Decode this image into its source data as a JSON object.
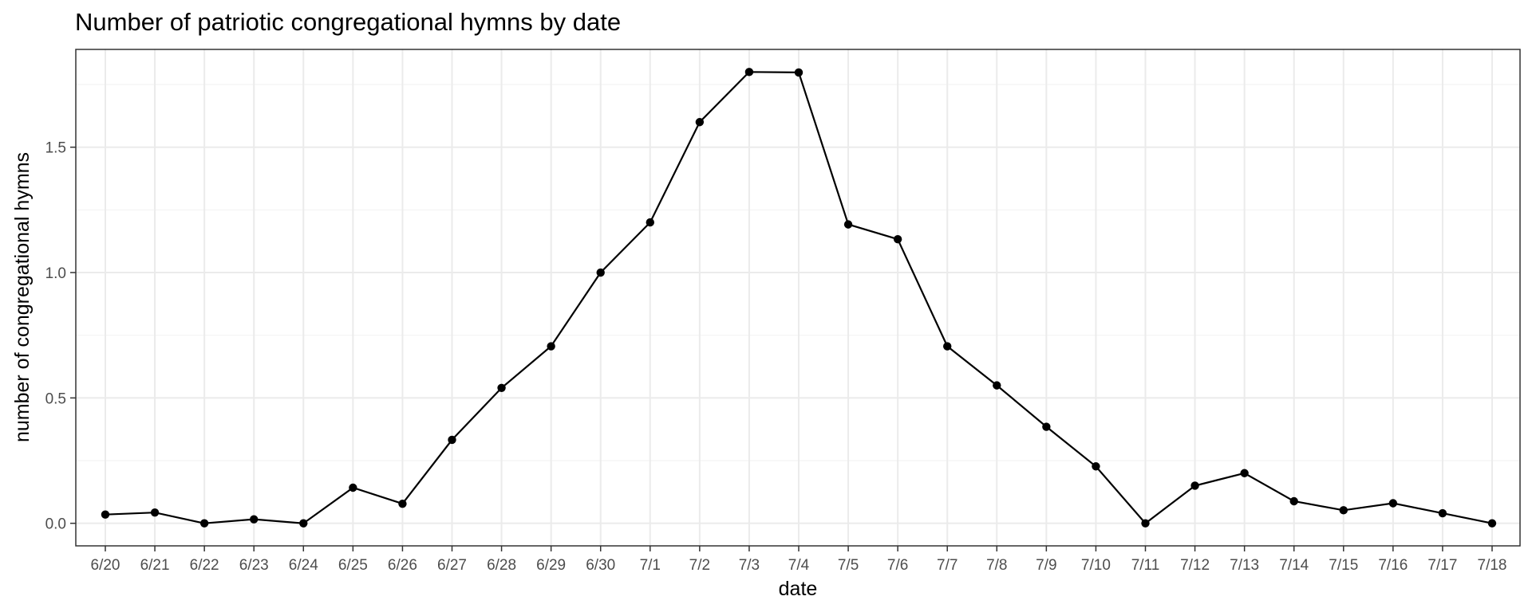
{
  "chart_data": {
    "type": "line",
    "title": "Number of patriotic congregational hymns by date",
    "xlabel": "date",
    "ylabel": "number of congregational hymns",
    "categories": [
      "6/20",
      "6/21",
      "6/22",
      "6/23",
      "6/24",
      "6/25",
      "6/26",
      "6/27",
      "6/28",
      "6/29",
      "6/30",
      "7/1",
      "7/2",
      "7/3",
      "7/4",
      "7/5",
      "7/6",
      "7/7",
      "7/8",
      "7/9",
      "7/10",
      "7/11",
      "7/12",
      "7/13",
      "7/14",
      "7/15",
      "7/16",
      "7/17",
      "7/18"
    ],
    "values": [
      0.035,
      0.043,
      0.0,
      0.016,
      0.0,
      0.142,
      0.078,
      0.333,
      0.54,
      0.706,
      1.0,
      1.2,
      1.6,
      1.8,
      1.798,
      1.192,
      1.133,
      0.706,
      0.55,
      0.385,
      0.227,
      0.0,
      0.15,
      0.2,
      0.088,
      0.052,
      0.08,
      0.04,
      0.0
    ],
    "yticks": [
      0.0,
      0.5,
      1.0,
      1.5
    ],
    "ytick_labels": [
      "0.0",
      "0.5",
      "1.0",
      "1.5"
    ],
    "ylim": [
      -0.09,
      1.89
    ],
    "grid": true,
    "legend": "none",
    "colors": {
      "line": "#000000",
      "point": "#000000",
      "grid": "#ebebeb",
      "tick_text": "#4d4d4d"
    }
  }
}
